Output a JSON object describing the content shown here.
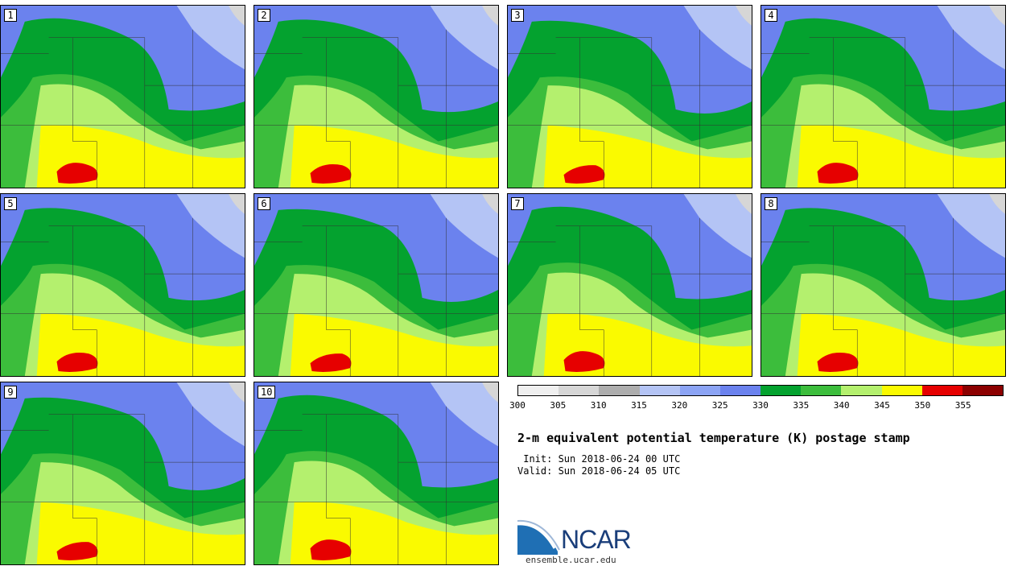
{
  "panels": [
    {
      "label": "1"
    },
    {
      "label": "2"
    },
    {
      "label": "3"
    },
    {
      "label": "4"
    },
    {
      "label": "5"
    },
    {
      "label": "6"
    },
    {
      "label": "7"
    },
    {
      "label": "8"
    },
    {
      "label": "9"
    },
    {
      "label": "10"
    }
  ],
  "colorbar": {
    "colors": [
      "#efefef",
      "#d6d6d6",
      "#adadad",
      "#b4c4f5",
      "#8ca4f5",
      "#6b82ee",
      "#04a22f",
      "#3cbd3c",
      "#b4f06e",
      "#fafa00",
      "#e60000",
      "#8c0000"
    ],
    "ticks": [
      "300",
      "305",
      "310",
      "315",
      "320",
      "325",
      "330",
      "335",
      "340",
      "345",
      "350",
      "355"
    ]
  },
  "title": "2-m equivalent potential temperature (K) postage stamp",
  "init": " Init: Sun 2018-06-24 00 UTC",
  "valid": "Valid: Sun 2018-06-24 05 UTC",
  "logo": {
    "text": "NCAR",
    "site": "ensemble.ucar.edu"
  }
}
